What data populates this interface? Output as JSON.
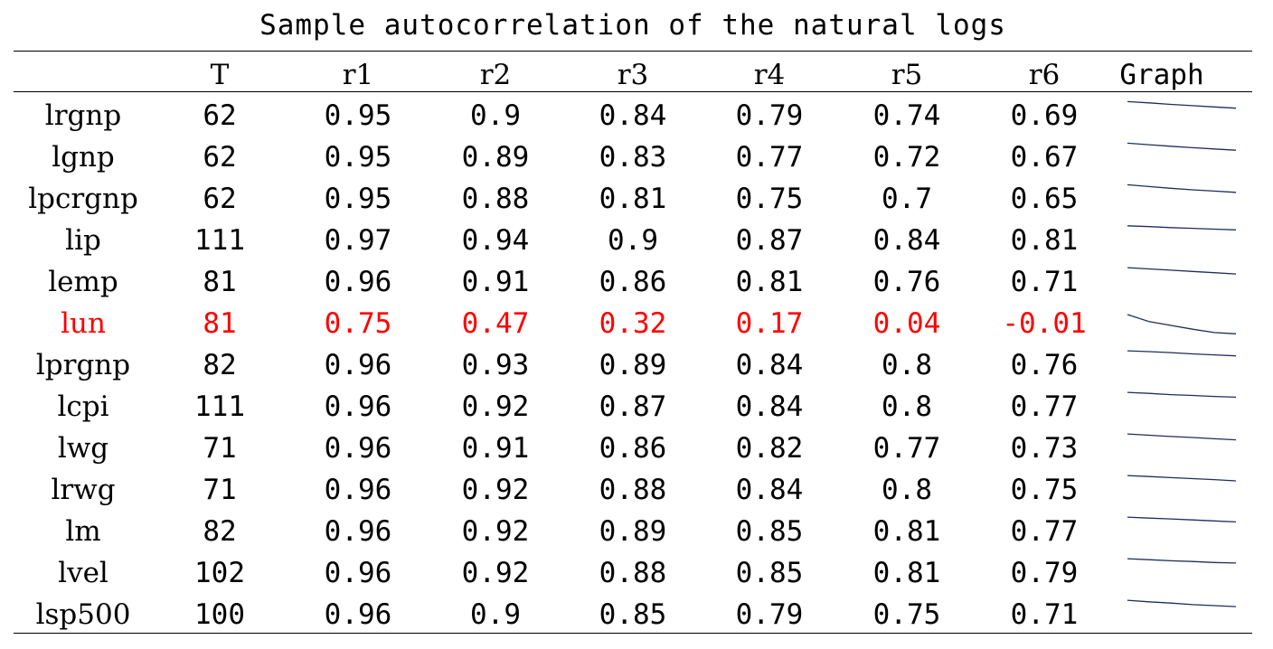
{
  "title": "Sample autocorrelation of the natural logs",
  "headers": [
    "",
    "T",
    "r1",
    "r2",
    "r3",
    "r4",
    "r5",
    "r6",
    "Graph"
  ],
  "highlight_color": "#ff0000",
  "sparkline_color": "#1f2d5a",
  "rows": [
    {
      "name": "lrgnp",
      "T": "62",
      "r": [
        "0.95",
        "0.9",
        "0.84",
        "0.79",
        "0.74",
        "0.69"
      ],
      "highlight": false
    },
    {
      "name": "lgnp",
      "T": "62",
      "r": [
        "0.95",
        "0.89",
        "0.83",
        "0.77",
        "0.72",
        "0.67"
      ],
      "highlight": false
    },
    {
      "name": "lpcrgnp",
      "T": "62",
      "r": [
        "0.95",
        "0.88",
        "0.81",
        "0.75",
        "0.7",
        "0.65"
      ],
      "highlight": false
    },
    {
      "name": "lip",
      "T": "111",
      "r": [
        "0.97",
        "0.94",
        "0.9",
        "0.87",
        "0.84",
        "0.81"
      ],
      "highlight": false
    },
    {
      "name": "lemp",
      "T": "81",
      "r": [
        "0.96",
        "0.91",
        "0.86",
        "0.81",
        "0.76",
        "0.71"
      ],
      "highlight": false
    },
    {
      "name": "lun",
      "T": "81",
      "r": [
        "0.75",
        "0.47",
        "0.32",
        "0.17",
        "0.04",
        "-0.01"
      ],
      "highlight": true
    },
    {
      "name": "lprgnp",
      "T": "82",
      "r": [
        "0.96",
        "0.93",
        "0.89",
        "0.84",
        "0.8",
        "0.76"
      ],
      "highlight": false
    },
    {
      "name": "lcpi",
      "T": "111",
      "r": [
        "0.96",
        "0.92",
        "0.87",
        "0.84",
        "0.8",
        "0.77"
      ],
      "highlight": false
    },
    {
      "name": "lwg",
      "T": "71",
      "r": [
        "0.96",
        "0.91",
        "0.86",
        "0.82",
        "0.77",
        "0.73"
      ],
      "highlight": false
    },
    {
      "name": "lrwg",
      "T": "71",
      "r": [
        "0.96",
        "0.92",
        "0.88",
        "0.84",
        "0.8",
        "0.75"
      ],
      "highlight": false
    },
    {
      "name": "lm",
      "T": "82",
      "r": [
        "0.96",
        "0.92",
        "0.89",
        "0.85",
        "0.81",
        "0.77"
      ],
      "highlight": false
    },
    {
      "name": "lvel",
      "T": "102",
      "r": [
        "0.96",
        "0.92",
        "0.88",
        "0.85",
        "0.81",
        "0.79"
      ],
      "highlight": false
    },
    {
      "name": "lsp500",
      "T": "100",
      "r": [
        "0.96",
        "0.9",
        "0.85",
        "0.79",
        "0.75",
        "0.71"
      ],
      "highlight": false
    }
  ]
}
